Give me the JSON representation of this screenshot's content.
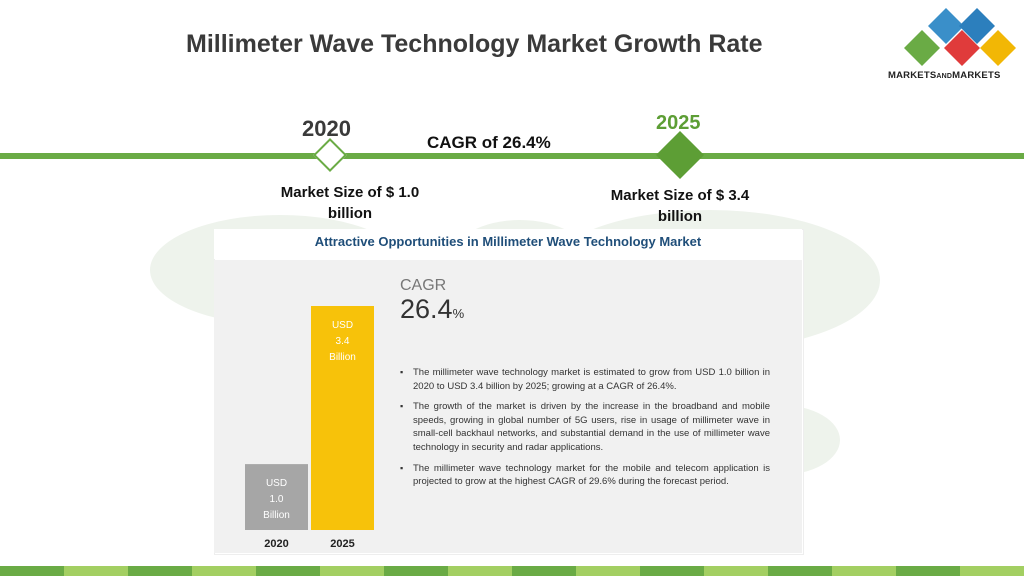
{
  "header": {
    "title": "Millimeter Wave Technology Market Growth Rate",
    "logo_text_main": "MARKETS",
    "logo_text_and": "AND",
    "logo_text_end": "MARKETS",
    "logo_colors": [
      "#3a8fc9",
      "#6aab45",
      "#e03b3b",
      "#f2b705"
    ]
  },
  "timeline": {
    "start_year": "2020",
    "end_year": "2025",
    "cagr_label": "CAGR of 26.4%",
    "start_size": "Market Size of $ 1.0 billion",
    "end_size": "Market Size of $ 3.4 billion",
    "accent_color": "#6aab45"
  },
  "panel": {
    "title": "Attractive Opportunities in Millimeter Wave Technology Market",
    "cagr_word": "CAGR",
    "cagr_value": "26.4",
    "cagr_unit": "%",
    "bullets": [
      "The millimeter wave technology market is estimated to grow from USD 1.0 billion in 2020 to USD 3.4 billion by 2025; growing at a CAGR of 26.4%.",
      "The growth of the market is driven by the increase in the broadband and mobile speeds, growing in global number of 5G users, rise in usage of millimeter wave in small-cell backhaul networks, and substantial demand in the use of millimeter wave technology in security and radar applications.",
      "The millimeter wave technology market for the mobile and telecom application is projected to grow at the highest CAGR of 29.6% during the forecast period."
    ]
  },
  "chart_data": {
    "type": "bar",
    "categories": [
      "2020",
      "2025"
    ],
    "values": [
      1.0,
      3.4
    ],
    "bar_labels": [
      [
        "USD",
        "1.0",
        "Billion"
      ],
      [
        "USD",
        "3.4",
        "Billion"
      ]
    ],
    "colors": [
      "#a6a6a6",
      "#f7c20a"
    ],
    "unit": "USD Billion",
    "ylim": [
      0,
      3.4
    ],
    "grid": false,
    "legend": "none"
  },
  "footer": {
    "strip_colors": [
      "#6aab45",
      "#a3cf62",
      "#6aab45",
      "#a3cf62",
      "#6aab45",
      "#a3cf62",
      "#6aab45",
      "#a3cf62",
      "#6aab45",
      "#a3cf62",
      "#6aab45",
      "#a3cf62",
      "#6aab45",
      "#a3cf62",
      "#6aab45",
      "#a3cf62"
    ]
  }
}
